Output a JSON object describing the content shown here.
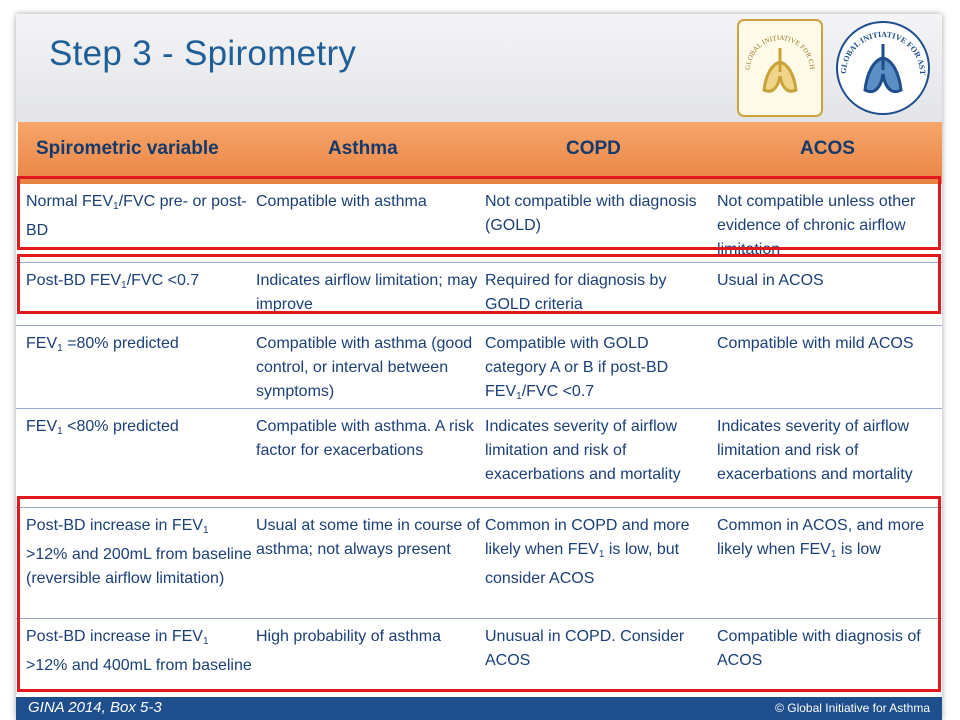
{
  "slide": {
    "title": "Step 3 - Spirometry",
    "logos": {
      "gold_text": "GLOBAL INITIATIVE FOR CHRONIC OBSTRUCTIVE LUNG DISEASE",
      "gina_text": "GLOBAL INITIATIVE FOR ASTHMA"
    }
  },
  "table": {
    "headers": [
      "Spirometric variable",
      "Asthma",
      "COPD",
      "ACOS"
    ],
    "rows": [
      {
        "variable": [
          "Normal FEV",
          "1",
          "/FVC pre- or post-BD"
        ],
        "asthma": "Compatible with asthma",
        "copd": "Not compatible with diagnosis (GOLD)",
        "acos": "Not compatible unless other evidence of chronic airflow limitation"
      },
      {
        "variable": [
          "Post-BD FEV",
          "1",
          "/FVC <0.7"
        ],
        "asthma": "Indicates airflow limitation; may improve",
        "copd": "Required for diagnosis by GOLD criteria",
        "acos": "Usual in ACOS"
      },
      {
        "variable": [
          "FEV",
          "1",
          " =80% predicted"
        ],
        "asthma": "Compatible with asthma (good control, or interval between symptoms)",
        "copd": [
          "Compatible with GOLD category A or B if post-BD FEV",
          "1",
          "/FVC <0.7"
        ],
        "acos": "Compatible with mild ACOS"
      },
      {
        "variable": [
          "FEV",
          "1",
          " <80% predicted"
        ],
        "asthma": "Compatible with asthma. A risk factor for exacerbations",
        "copd": "Indicates severity of airflow limitation and risk of exacerbations and mortality",
        "acos": "Indicates severity of airflow limitation and risk of exacerbations and mortality"
      },
      {
        "variable": [
          "Post-BD increase in FEV",
          "1",
          " >12% and 200mL from baseline (reversible airflow limitation)"
        ],
        "asthma": "Usual at some time in course of asthma; not always present",
        "copd": [
          "Common in COPD and more likely when FEV",
          "1",
          " is low, but consider ACOS"
        ],
        "acos": [
          "Common in ACOS, and more likely when FEV",
          "1",
          " is low"
        ]
      },
      {
        "variable": [
          "Post-BD increase in FEV",
          "1",
          " >12% and 400mL from baseline"
        ],
        "asthma": "High probability of asthma",
        "copd": "Unusual in COPD. Consider ACOS",
        "acos": "Compatible with diagnosis of ACOS"
      }
    ]
  },
  "footer": {
    "citation": "GINA 2014, Box 5-3",
    "copyright": "© Global Initiative for Asthma"
  },
  "colors": {
    "title": "#1f5f98",
    "header_band": "#f29a5c",
    "header_text": "#15396b",
    "body_text": "#1b3f77",
    "highlight": "#e0191f",
    "footer": "#1e4e8c"
  }
}
